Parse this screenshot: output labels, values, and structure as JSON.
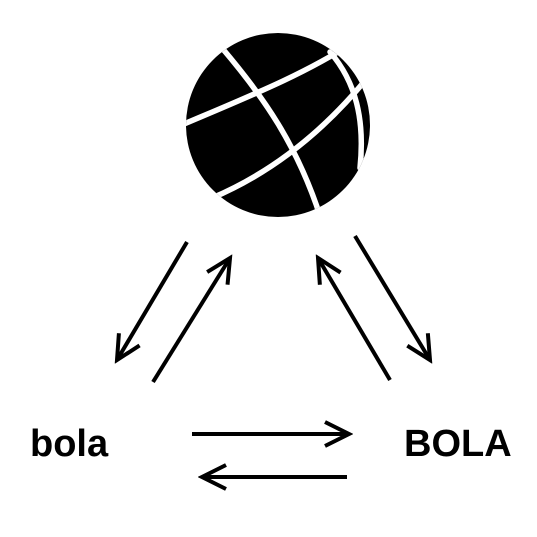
{
  "labels": {
    "lowercase": "bola",
    "uppercase": "BOLA"
  },
  "icons": {
    "ball": "basketball-icon"
  },
  "colors": {
    "ink": "#000000",
    "background": "#ffffff"
  }
}
